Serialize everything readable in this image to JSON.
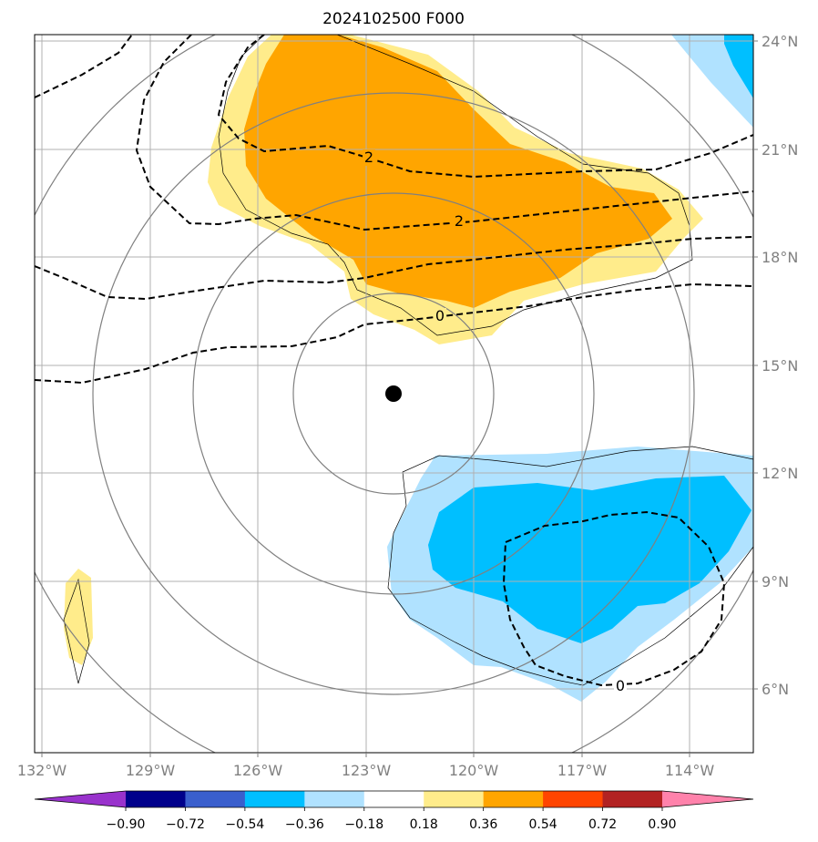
{
  "chart_data": {
    "type": "contour-map",
    "title": "2024102500 F000",
    "x_ticks": [
      "132°W",
      "129°W",
      "126°W",
      "123°W",
      "120°W",
      "117°W",
      "114°W"
    ],
    "y_ticks": [
      "24°N",
      "21°N",
      "18°N",
      "15°N",
      "12°N",
      "9°N",
      "6°N"
    ],
    "lon_range": [
      -132.2,
      -112.2
    ],
    "lat_range": [
      4.2,
      24.2
    ],
    "grid": true,
    "colorbar": {
      "levels": [
        "−0.90",
        "−0.72",
        "−0.54",
        "−0.36",
        "−0.18",
        "0.18",
        "0.36",
        "0.54",
        "0.72",
        "0.90"
      ],
      "colors": [
        "#9932cc",
        "#00008b",
        "#3a5fcd",
        "#00bfff",
        "#b0e2ff",
        "#ffffff",
        "#ffec8b",
        "#ffa500",
        "#ff4500",
        "#b22222",
        "#ff82ab"
      ],
      "extend": "both"
    },
    "contour_labels": [
      "2",
      "2",
      "0",
      "0"
    ],
    "center_marker": {
      "lon": -122.25,
      "lat": 14.25
    },
    "range_rings_deg": [
      3,
      6,
      9,
      12
    ]
  }
}
